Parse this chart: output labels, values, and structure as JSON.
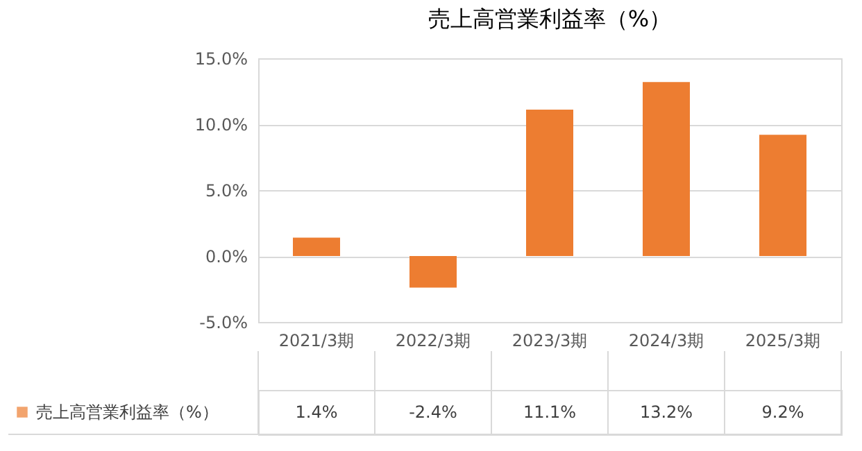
{
  "chart_data": {
    "type": "bar",
    "title": "売上高営業利益率（%）",
    "categories": [
      "2021/3期",
      "2022/3期",
      "2023/3期",
      "2024/3期",
      "2025/3期"
    ],
    "series": [
      {
        "name": "売上高営業利益率（%）",
        "color": "#ed7d31",
        "values": [
          1.4,
          -2.4,
          11.1,
          13.2,
          9.2
        ],
        "value_labels": [
          "1.4%",
          "-2.4%",
          "11.1%",
          "13.2%",
          "9.2%"
        ]
      }
    ],
    "ylim": [
      -5,
      15
    ],
    "yticks": [
      {
        "value": -5,
        "label": "-5.0%"
      },
      {
        "value": 0,
        "label": "0.0%"
      },
      {
        "value": 5,
        "label": "5.0%"
      },
      {
        "value": 10,
        "label": "10.0%"
      },
      {
        "value": 15,
        "label": "15.0%"
      }
    ],
    "grid": "y",
    "legend": "bottom"
  }
}
